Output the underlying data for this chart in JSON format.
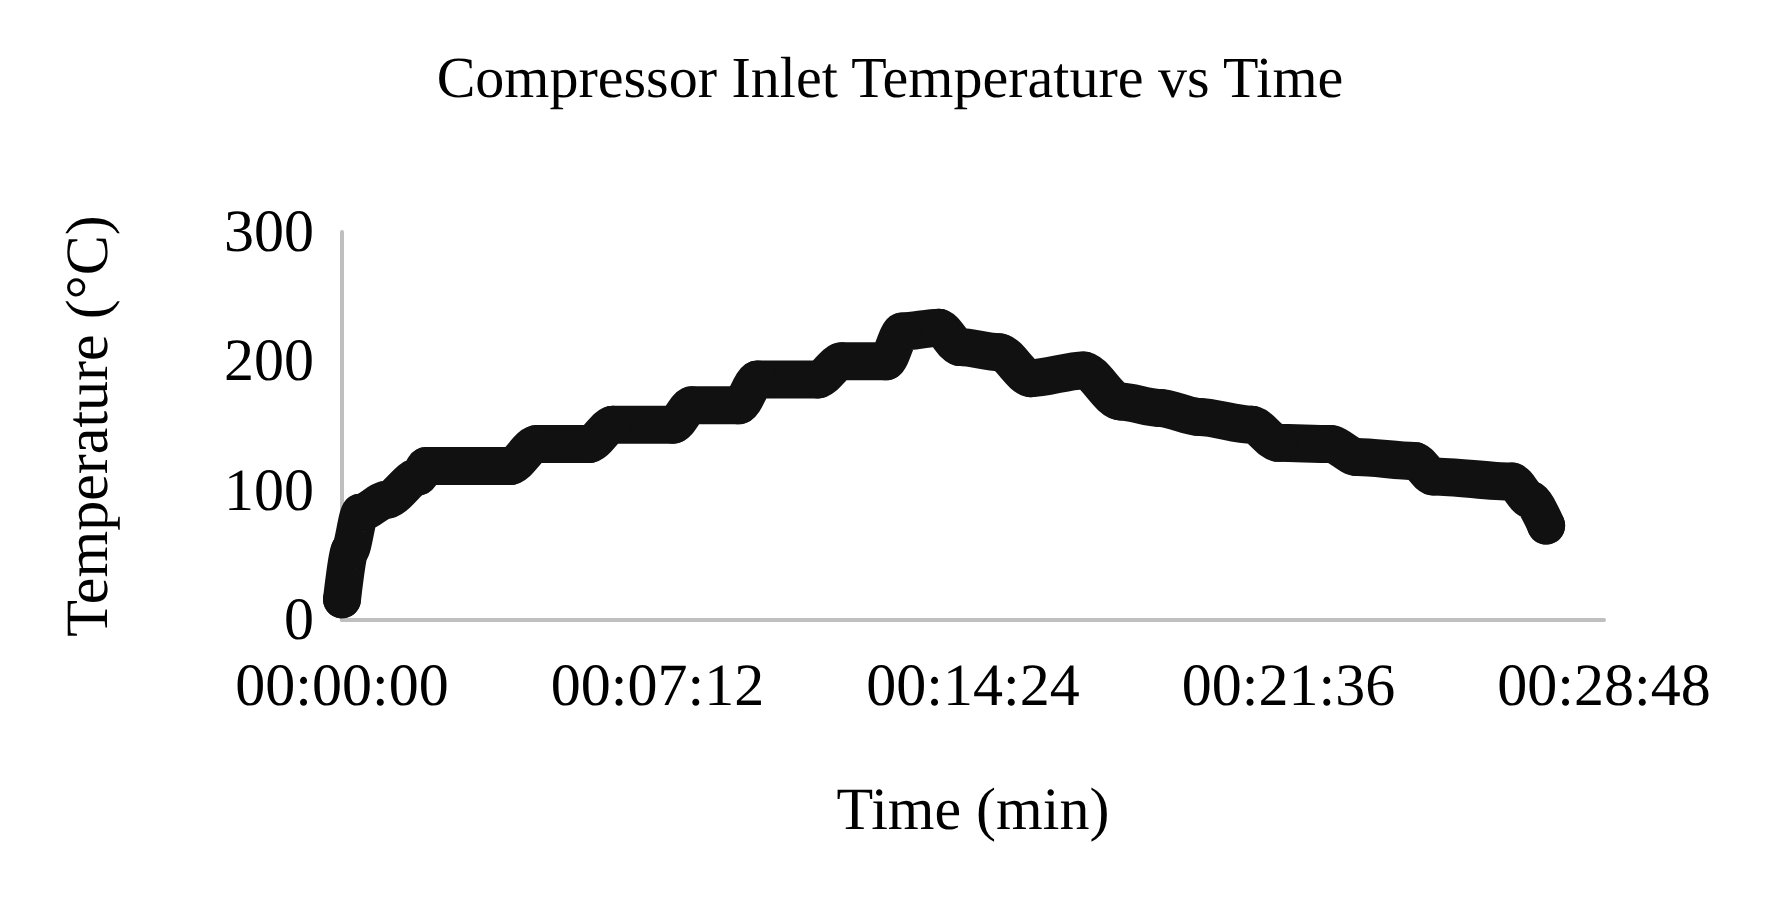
{
  "chart_data": {
    "type": "line",
    "title": "Compressor Inlet Temperature vs Time",
    "xlabel": "Time (min)",
    "ylabel": "Temperature (°C)",
    "x": [
      0,
      0.003,
      0.007,
      0.017,
      0.029,
      0.032,
      0.064,
      0.074,
      0.094,
      0.103,
      0.126,
      0.133,
      0.151,
      0.158,
      0.181,
      0.19,
      0.207,
      0.213,
      0.227,
      0.235,
      0.25,
      0.262,
      0.282,
      0.296,
      0.311,
      0.326,
      0.346,
      0.356,
      0.376,
      0.386,
      0.408,
      0.415,
      0.445,
      0.452,
      0.458
    ],
    "series": [
      {
        "color": "#111111",
        "values": [
          16,
          54,
          83,
          93,
          111,
          119,
          119,
          136,
          136,
          151,
          151,
          166,
          166,
          186,
          186,
          200,
          200,
          223,
          226,
          211,
          207,
          187,
          193,
          169,
          164,
          157,
          151,
          137,
          136,
          126,
          123,
          111,
          107,
          93,
          73
        ]
      }
    ],
    "xlim": [
      0,
      0.48
    ],
    "xticks": [
      {
        "value": 0,
        "label": "00:00:00"
      },
      {
        "value": 0.12,
        "label": "00:07:12"
      },
      {
        "value": 0.24,
        "label": "00:14:24"
      },
      {
        "value": 0.36,
        "label": "00:21:36"
      },
      {
        "value": 0.48,
        "label": "00:28:48"
      }
    ],
    "ylim": [
      0,
      300
    ],
    "yticks": [
      0,
      100,
      200,
      300
    ],
    "grid": false,
    "marker": "circle",
    "line_style": "solid"
  }
}
